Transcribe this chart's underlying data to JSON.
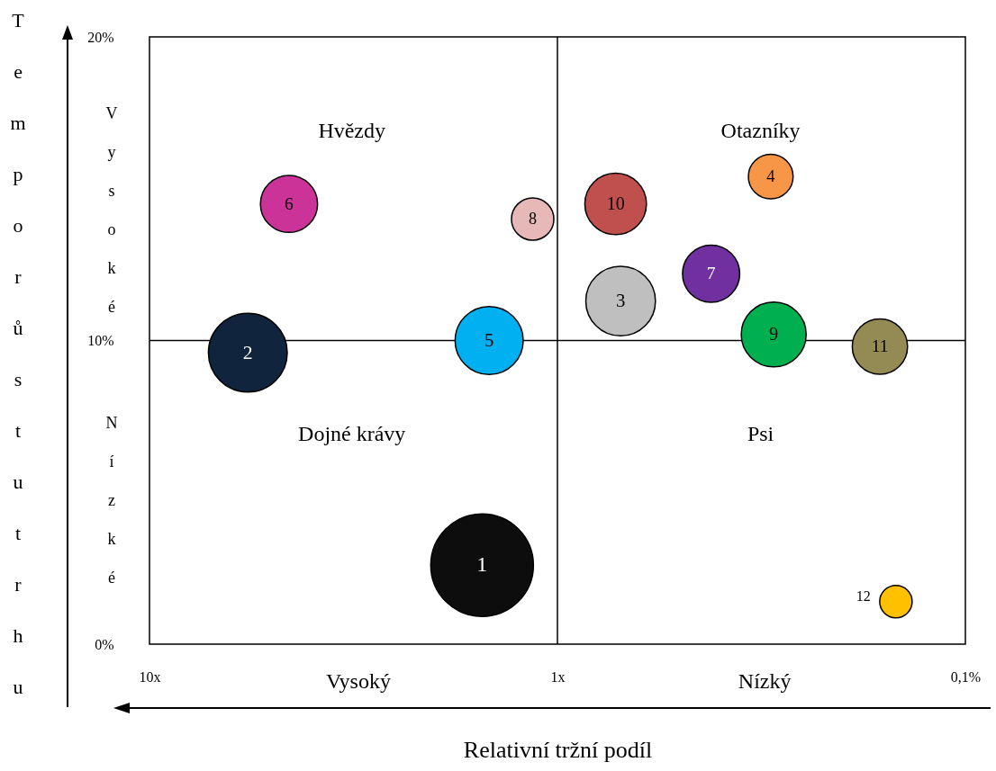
{
  "chart_data": {
    "type": "bubble",
    "xlabel": "Relativní tržní podíl",
    "ylabel": "Tempo růstu trhu",
    "log": "x",
    "xlim": [
      10,
      0.1
    ],
    "xticks": [
      {
        "value": 10,
        "label": "10x"
      },
      {
        "value": 1,
        "label": "1x"
      },
      {
        "value": 0.1,
        "label": "0,1%"
      }
    ],
    "ylim": [
      0,
      20
    ],
    "yticks": [
      {
        "value": 0,
        "label": "0%"
      },
      {
        "value": 10,
        "label": "10%"
      },
      {
        "value": 20,
        "label": "20%"
      }
    ],
    "grid": false,
    "ref_lines": [
      {
        "axis": "x",
        "value": 1,
        "color": "#000000"
      },
      {
        "axis": "y",
        "value": 10,
        "color": "#000000"
      }
    ],
    "annotations": [
      "Hvězdy",
      "Otazníky",
      "Dojné krávy",
      "Psi",
      "Vysoký",
      "Nízký",
      "Vysoké",
      "Nízké"
    ],
    "series": [
      {
        "name": "1",
        "color": "#0d0d0d",
        "x": [
          1.53
        ],
        "values": [
          2.6
        ],
        "sizes": [
          1
        ]
      },
      {
        "name": "2",
        "color": "#10243e",
        "x": [
          5.74
        ],
        "values": [
          9.6
        ],
        "sizes": [
          0.59
        ]
      },
      {
        "name": "3",
        "color": "#bfbfbf",
        "x": [
          0.7
        ],
        "values": [
          11.3
        ],
        "sizes": [
          0.46
        ]
      },
      {
        "name": "4",
        "color": "#f79646",
        "x": [
          0.3
        ],
        "values": [
          15.4
        ],
        "sizes": [
          0.19
        ]
      },
      {
        "name": "5",
        "color": "#00b0f0",
        "x": [
          1.47
        ],
        "values": [
          10
        ],
        "sizes": [
          0.44
        ]
      },
      {
        "name": "6",
        "color": "#cc3399",
        "x": [
          4.55
        ],
        "values": [
          14.5
        ],
        "sizes": [
          0.31
        ]
      },
      {
        "name": "7",
        "color": "#7030a0",
        "x": [
          0.42
        ],
        "values": [
          12.2
        ],
        "sizes": [
          0.31
        ]
      },
      {
        "name": "8",
        "color": "#e6b9b8",
        "x": [
          1.15
        ],
        "values": [
          14
        ],
        "sizes": [
          0.17
        ]
      },
      {
        "name": "9",
        "color": "#00b050",
        "x": [
          0.295
        ],
        "values": [
          10.2
        ],
        "sizes": [
          0.4
        ]
      },
      {
        "name": "10",
        "color": "#c0504d",
        "x": [
          0.72
        ],
        "values": [
          14.5
        ],
        "sizes": [
          0.36
        ]
      },
      {
        "name": "11",
        "color": "#948a54",
        "x": [
          0.162
        ],
        "values": [
          9.8
        ],
        "sizes": [
          0.29
        ]
      },
      {
        "name": "12",
        "color": "#ffc000",
        "x": [
          0.148
        ],
        "values": [
          1.4
        ],
        "sizes": [
          0.1
        ]
      }
    ]
  }
}
